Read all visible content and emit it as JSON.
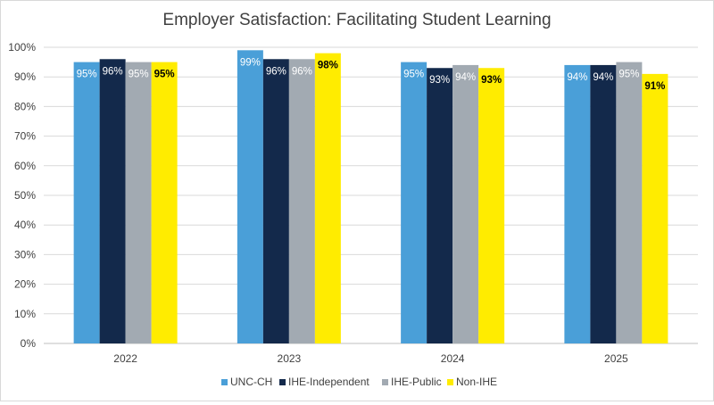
{
  "chart_data": {
    "type": "bar",
    "title": "Employer Satisfaction: Facilitating Student Learning",
    "xlabel": "",
    "ylabel": "",
    "categories": [
      "2022",
      "2023",
      "2024",
      "2025"
    ],
    "ylim": [
      0,
      100
    ],
    "yticks": [
      0,
      10,
      20,
      30,
      40,
      50,
      60,
      70,
      80,
      90,
      100
    ],
    "ytick_labels": [
      "0%",
      "10%",
      "20%",
      "30%",
      "40%",
      "50%",
      "60%",
      "70%",
      "80%",
      "90%",
      "100%"
    ],
    "grid": true,
    "legend_position": "bottom",
    "series": [
      {
        "name": "UNC-CH",
        "color": "#4a9fd8",
        "label_color": "#ffffff",
        "values": [
          95,
          99,
          95,
          94
        ],
        "labels": [
          "95%",
          "99%",
          "95%",
          "94%"
        ]
      },
      {
        "name": "IHE-Independent",
        "color": "#13294b",
        "label_color": "#ffffff",
        "values": [
          96,
          96,
          93,
          94
        ],
        "labels": [
          "96%",
          "96%",
          "93%",
          "94%"
        ]
      },
      {
        "name": "IHE-Public",
        "color": "#a2aab2",
        "label_color": "#ffffff",
        "values": [
          95,
          96,
          94,
          95
        ],
        "labels": [
          "95%",
          "96%",
          "94%",
          "95%"
        ]
      },
      {
        "name": "Non-IHE",
        "color": "#ffec00",
        "label_color": "#000000",
        "values": [
          95,
          98,
          93,
          91
        ],
        "labels": [
          "95%",
          "98%",
          "93%",
          "91%"
        ]
      }
    ]
  }
}
